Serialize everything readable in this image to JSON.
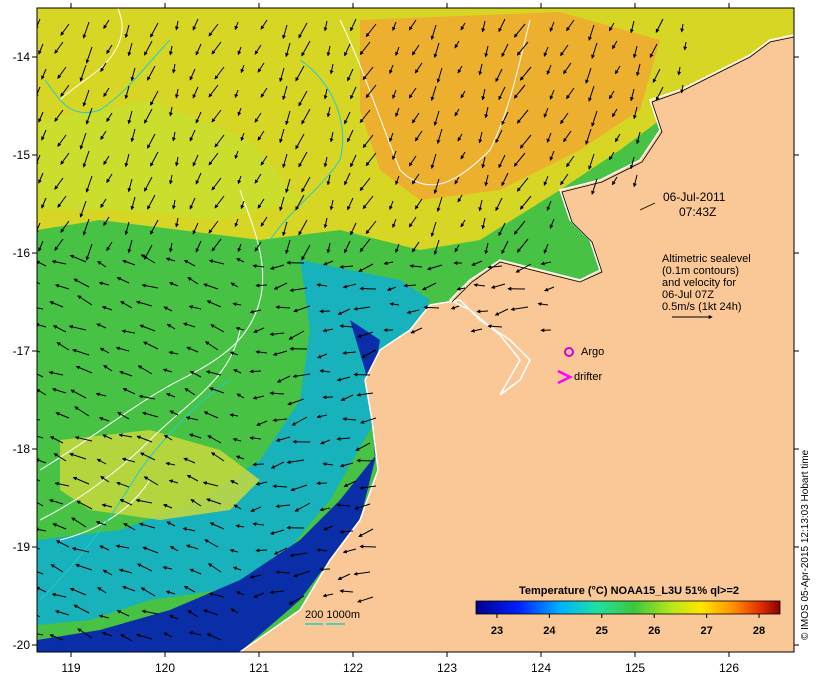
{
  "map": {
    "date_label": "06-Jul-2011",
    "time_label": "07:43Z",
    "altimetry_note": [
      "Altimetric sealevel",
      "(0.1m contours)",
      "and velocity for",
      "06-Jul 07Z",
      "0.5m/s (1kt 24h)"
    ],
    "argo_label": "Argo",
    "drifter_label": "drifter",
    "bathy_label": "200  1000m",
    "colorbar": {
      "title": "Temperature (°C) NOAA15_L3U 51% ql>=2",
      "ticks": [
        "23",
        "24",
        "25",
        "26",
        "27",
        "28"
      ],
      "min": 22.6,
      "max": 28.4
    },
    "x_ticks": [
      "119",
      "120",
      "121",
      "122",
      "123",
      "124",
      "125",
      "126"
    ],
    "y_ticks": [
      "-14",
      "-15",
      "-16",
      "-17",
      "-18",
      "-19",
      "-20"
    ],
    "credit": "© IMOS 05-Apr-2015 12:13:03 Hobart time",
    "colors": {
      "land": "#f9c896",
      "argo": "#d400d4",
      "drifter": "#ff00ff",
      "contour": "#ffffff",
      "bathy": "#22cccc"
    }
  }
}
